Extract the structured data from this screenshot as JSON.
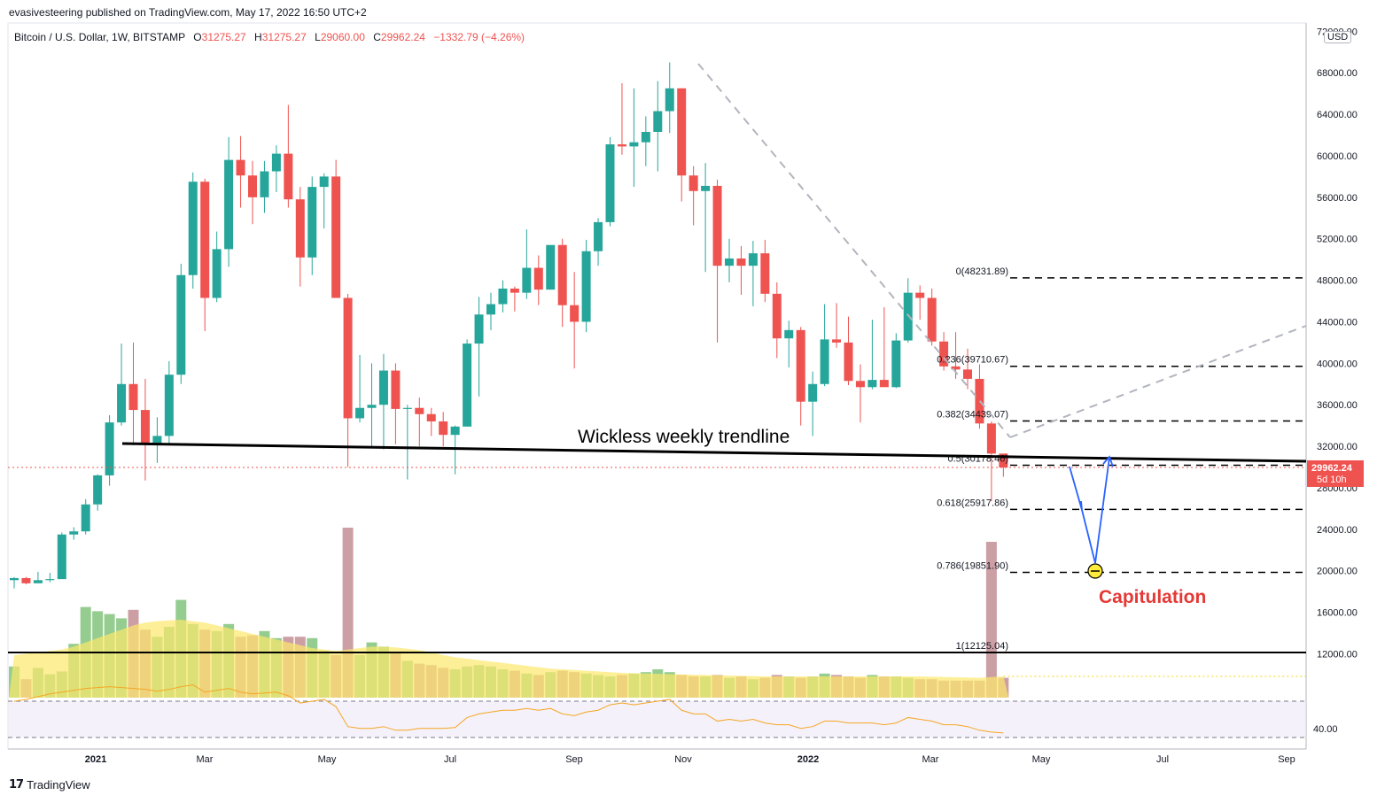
{
  "header": {
    "publisher": "evasivesteering published on TradingView.com, May 17, 2022 16:50 UTC+2",
    "symbol": "Bitcoin / U.S. Dollar, 1W, BITSTAMP",
    "o_label": "O",
    "o_value": "31275.27",
    "h_label": "H",
    "h_value": "31275.27",
    "l_label": "L",
    "l_value": "29060.00",
    "c_label": "C",
    "c_value": "29962.24",
    "change": "−1332.79 (−4.26%)"
  },
  "footer": {
    "brand": "TradingView",
    "brand_mark": "17"
  },
  "currency_badge": "USD",
  "colors": {
    "up": "#26a69a",
    "down": "#ef5350",
    "ma": "#fce86b",
    "rsi": "#f5a623",
    "text": "#131722",
    "axis": "#787b86",
    "accent": "#e53935",
    "annot_blue": "#2962ff"
  },
  "chart_data": {
    "type": "candlestick",
    "title": "Bitcoin / U.S. Dollar, 1W, BITSTAMP",
    "x_labels": [
      "2021",
      "Mar",
      "May",
      "Jul",
      "Sep",
      "Nov",
      "2022",
      "Mar",
      "May",
      "Jul",
      "Sep"
    ],
    "y_ticks": [
      72000,
      68000,
      64000,
      60000,
      56000,
      52000,
      48000,
      44000,
      40000,
      36000,
      32000,
      28000,
      24000,
      20000,
      16000,
      12000
    ],
    "y_tick_labels": [
      "72000.00",
      "68000.00",
      "64000.00",
      "60000.00",
      "56000.00",
      "52000.00",
      "48000.00",
      "44000.00",
      "40000.00",
      "36000.00",
      "32000.00",
      "28000.00",
      "24000.00",
      "20000.00",
      "16000.00",
      "12000.00"
    ],
    "ylim": [
      10000,
      72000
    ],
    "last_price": {
      "value": 29962.24,
      "label": "29962.24",
      "countdown": "5d 10h"
    },
    "candles": [
      [
        19100,
        19400,
        18300,
        19300
      ],
      [
        19300,
        19400,
        18700,
        18800
      ],
      [
        18800,
        19900,
        18800,
        19100
      ],
      [
        19100,
        19800,
        18900,
        19200
      ],
      [
        19200,
        23700,
        19200,
        23500
      ],
      [
        23500,
        24200,
        23000,
        23800
      ],
      [
        23800,
        26900,
        23500,
        26400
      ],
      [
        26400,
        29300,
        25800,
        29200
      ],
      [
        29200,
        35000,
        28200,
        34300
      ],
      [
        34300,
        41900,
        34000,
        38000
      ],
      [
        38000,
        42000,
        32100,
        35500
      ],
      [
        35500,
        38500,
        28700,
        32300
      ],
      [
        32300,
        34800,
        30400,
        33000
      ],
      [
        33000,
        40200,
        32300,
        38900
      ],
      [
        38900,
        49600,
        38000,
        48500
      ],
      [
        48500,
        58400,
        47200,
        57500
      ],
      [
        57500,
        57800,
        43100,
        46300
      ],
      [
        46300,
        52700,
        45900,
        51000
      ],
      [
        51000,
        61800,
        49300,
        59600
      ],
      [
        59600,
        61900,
        55000,
        58100
      ],
      [
        58100,
        59500,
        53400,
        56000
      ],
      [
        56000,
        59500,
        54500,
        58500
      ],
      [
        58500,
        61000,
        56500,
        60200
      ],
      [
        60200,
        64900,
        55000,
        55800
      ],
      [
        55800,
        57000,
        47400,
        50200
      ],
      [
        50200,
        58000,
        48500,
        57000
      ],
      [
        57000,
        58300,
        53000,
        58000
      ],
      [
        58000,
        59600,
        46600,
        46300
      ],
      [
        46300,
        46700,
        30000,
        34700
      ],
      [
        34700,
        40800,
        34300,
        35700
      ],
      [
        35700,
        40000,
        32000,
        36000
      ],
      [
        36000,
        40900,
        31700,
        39300
      ],
      [
        39300,
        40000,
        32200,
        35600
      ],
      [
        35600,
        36000,
        28800,
        35700
      ],
      [
        35700,
        36700,
        32000,
        35100
      ],
      [
        35100,
        35700,
        33000,
        34400
      ],
      [
        34400,
        35300,
        32000,
        33100
      ],
      [
        33100,
        34000,
        29300,
        33900
      ],
      [
        33900,
        42300,
        33900,
        41900
      ],
      [
        41900,
        46400,
        36800,
        44700
      ],
      [
        44700,
        46800,
        43200,
        45700
      ],
      [
        45700,
        48000,
        44900,
        47200
      ],
      [
        47200,
        47400,
        45000,
        46800
      ],
      [
        46800,
        52900,
        46200,
        49200
      ],
      [
        49200,
        50400,
        45600,
        47100
      ],
      [
        47100,
        51200,
        47100,
        51400
      ],
      [
        51400,
        52000,
        43500,
        45600
      ],
      [
        45600,
        48800,
        39500,
        44000
      ],
      [
        44000,
        51900,
        43000,
        50800
      ],
      [
        50800,
        54000,
        49400,
        53600
      ],
      [
        53600,
        61800,
        53200,
        61100
      ],
      [
        61100,
        67000,
        60100,
        60900
      ],
      [
        60900,
        66500,
        57000,
        61300
      ],
      [
        61300,
        63800,
        59000,
        62300
      ],
      [
        62300,
        67200,
        58500,
        64300
      ],
      [
        64300,
        69000,
        62200,
        66500
      ],
      [
        66500,
        66500,
        55600,
        58100
      ],
      [
        58100,
        59000,
        53300,
        56600
      ],
      [
        56600,
        59300,
        48800,
        57100
      ],
      [
        57100,
        57700,
        42000,
        49400
      ],
      [
        49400,
        52000,
        47800,
        50100
      ],
      [
        50100,
        51300,
        46600,
        49400
      ],
      [
        49400,
        51800,
        45500,
        50600
      ],
      [
        50600,
        51900,
        45900,
        46700
      ],
      [
        46700,
        47800,
        40500,
        42400
      ],
      [
        42400,
        44100,
        39600,
        43200
      ],
      [
        43200,
        43500,
        34000,
        36300
      ],
      [
        36300,
        39200,
        33000,
        38000
      ],
      [
        38000,
        45700,
        37800,
        42300
      ],
      [
        42300,
        45800,
        41500,
        42000
      ],
      [
        42000,
        44500,
        37900,
        38300
      ],
      [
        38300,
        39900,
        34300,
        37700
      ],
      [
        37700,
        44200,
        37500,
        38400
      ],
      [
        38400,
        45400,
        38000,
        37700
      ],
      [
        37700,
        42900,
        37600,
        42200
      ],
      [
        42200,
        48200,
        42000,
        46800
      ],
      [
        46800,
        47500,
        44200,
        46300
      ],
      [
        46300,
        47200,
        41700,
        42100
      ],
      [
        42100,
        43000,
        39300,
        39700
      ],
      [
        39700,
        43000,
        38500,
        39400
      ],
      [
        39400,
        41400,
        37500,
        38500
      ],
      [
        38500,
        39900,
        33700,
        34200
      ],
      [
        34200,
        34400,
        26700,
        31300
      ],
      [
        31300,
        31300,
        29060,
        29962
      ]
    ],
    "volume": [
      220,
      130,
      210,
      165,
      185,
      380,
      640,
      610,
      590,
      560,
      620,
      480,
      430,
      500,
      690,
      520,
      480,
      470,
      520,
      430,
      440,
      470,
      420,
      430,
      430,
      420,
      330,
      300,
      1200,
      300,
      390,
      360,
      320,
      260,
      240,
      230,
      210,
      200,
      220,
      230,
      220,
      200,
      190,
      170,
      160,
      180,
      190,
      180,
      170,
      160,
      150,
      160,
      170,
      180,
      200,
      180,
      160,
      150,
      150,
      160,
      140,
      150,
      130,
      140,
      160,
      150,
      140,
      150,
      170,
      160,
      150,
      140,
      160,
      150,
      150,
      140,
      130,
      130,
      120,
      120,
      120,
      120,
      1100,
      140
    ],
    "volume_ma": [
      300,
      310,
      320,
      330,
      340,
      360,
      390,
      420,
      450,
      480,
      510,
      530,
      540,
      545,
      550,
      540,
      530,
      510,
      490,
      470,
      450,
      430,
      410,
      390,
      370,
      350,
      340,
      330,
      340,
      350,
      360,
      360,
      355,
      345,
      335,
      320,
      300,
      285,
      275,
      265,
      255,
      245,
      235,
      225,
      215,
      205,
      200,
      195,
      190,
      185,
      180,
      175,
      172,
      170,
      168,
      166,
      164,
      162,
      160,
      158,
      156,
      154,
      152,
      150,
      150,
      150,
      150,
      150,
      150,
      150,
      150,
      150,
      150,
      150,
      150,
      150,
      150,
      148,
      146,
      144,
      142,
      140,
      145,
      150
    ],
    "rsi": [
      70,
      72,
      75,
      78,
      80,
      82,
      84,
      85,
      86,
      85,
      84,
      83,
      81,
      83,
      86,
      88,
      80,
      82,
      84,
      80,
      78,
      79,
      80,
      76,
      68,
      70,
      72,
      64,
      42,
      40,
      40,
      42,
      38,
      38,
      40,
      40,
      40,
      41,
      52,
      56,
      58,
      60,
      60,
      62,
      60,
      62,
      56,
      54,
      58,
      60,
      66,
      68,
      66,
      68,
      70,
      72,
      60,
      56,
      56,
      48,
      50,
      48,
      50,
      46,
      44,
      44,
      40,
      42,
      48,
      48,
      46,
      46,
      46,
      44,
      46,
      52,
      50,
      48,
      44,
      44,
      42,
      38,
      36,
      35
    ],
    "rsi_tick": "40.00",
    "fib_levels": [
      {
        "label": "0(48231.89)",
        "value": 48231.89
      },
      {
        "label": "0.236(39710.67)",
        "value": 39710.67
      },
      {
        "label": "0.382(34439.07)",
        "value": 34439.07
      },
      {
        "label": "0.5(30178.46)",
        "value": 30178.46
      },
      {
        "label": "0.618(25917.86)",
        "value": 25917.86
      },
      {
        "label": "0.786(19851.90)",
        "value": 19851.9
      },
      {
        "label": "1(12125.04)",
        "value": 12125.04
      }
    ],
    "annotations": {
      "trendline_label": "Wickless weekly trendline",
      "capitulation_label": "Capitulation"
    }
  }
}
